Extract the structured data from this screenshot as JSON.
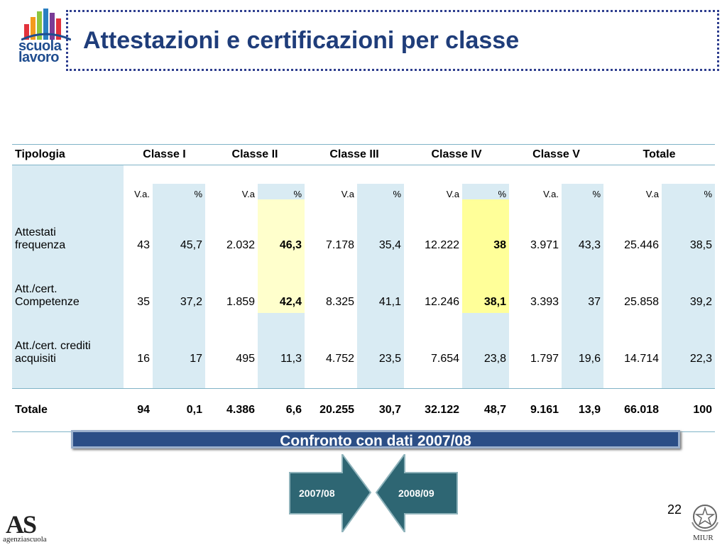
{
  "header": {
    "logo_line1": "scuola",
    "logo_line2": "lavoro",
    "title": "Attestazioni e certificazioni per classe"
  },
  "table": {
    "headers": [
      "Tipologia",
      "Classe I",
      "Classe II",
      "Classe III",
      "Classe IV",
      "Classe V",
      "Totale"
    ],
    "subheaders": [
      "V.a.",
      "%",
      "V.a",
      "%",
      "V.a",
      "%",
      "V.a",
      "%",
      "V.a.",
      "%",
      "V.a",
      "%"
    ],
    "rows": [
      {
        "label_line1": "Attestati",
        "label_line2": "frequenza",
        "cells": [
          "43",
          "45,7",
          "2.032",
          "46,3",
          "7.178",
          "35,4",
          "12.222",
          "38",
          "3.971",
          "43,3",
          "25.446",
          "38,5"
        ]
      },
      {
        "label_line1": "Att./cert.",
        "label_line2": "Competenze",
        "cells": [
          "35",
          "37,2",
          "1.859",
          "42,4",
          "8.325",
          "41,1",
          "12.246",
          "38,1",
          "3.393",
          "37",
          "25.858",
          "39,2"
        ]
      },
      {
        "label_line1": "Att./cert. crediti",
        "label_line2": "acquisiti",
        "cells": [
          "16",
          "17",
          "495",
          "11,3",
          "4.752",
          "23,5",
          "7.654",
          "23,8",
          "1.797",
          "19,6",
          "14.714",
          "22,3"
        ]
      }
    ],
    "total": {
      "label": "Totale",
      "cells": [
        "94",
        "0,1",
        "4.386",
        "6,6",
        "20.255",
        "30,7",
        "32.122",
        "48,7",
        "9.161",
        "13,9",
        "66.018",
        "100"
      ]
    }
  },
  "banner": {
    "text": "Confronto con dati 2007/08"
  },
  "arrows": {
    "left_label": "2007/08",
    "right_label": "2008/09"
  },
  "page_number": "22",
  "footer": {
    "left_logo_big": "AS",
    "left_logo_small": "agenziascuola",
    "right_logo_text": "MIUR"
  },
  "colors": {
    "title": "#1f3d7a",
    "banner_bg": "#2b4e86",
    "arrow_fill": "#2e6673",
    "column_shade": "#d9ebf3",
    "highlight_light": "#ffffcc",
    "highlight_strong": "#ffff99"
  }
}
